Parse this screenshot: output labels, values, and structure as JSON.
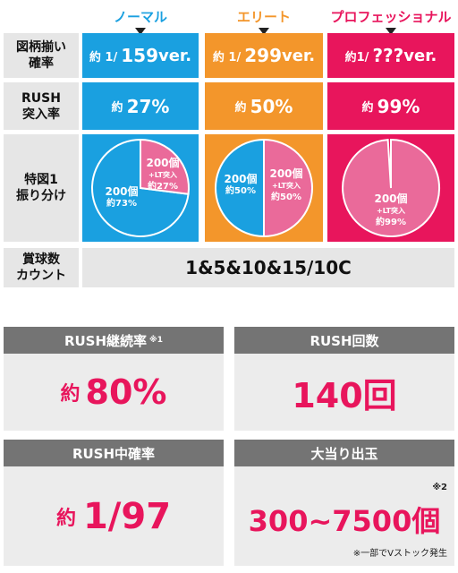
{
  "modes": {
    "normal": "ノーマル",
    "elite": "エリート",
    "professional": "プロフェッショナル"
  },
  "colors": {
    "blue": "#1aa0e0",
    "orange": "#f3962b",
    "magenta": "#e8155c",
    "pink": "#ea6a9a",
    "label_bg": "#e6e6e6",
    "box_head": "#747474",
    "box_body": "#ececec"
  },
  "rows": {
    "probability": {
      "label": "図柄揃い\n確率",
      "normal_prefix": "約 1/",
      "normal_value": "159",
      "normal_suffix": "ver.",
      "elite_prefix": "約 1/",
      "elite_value": "299",
      "elite_suffix": "ver.",
      "pro_prefix": "約1/",
      "pro_value": "???",
      "pro_suffix": "ver."
    },
    "rush_entry": {
      "label": "RUSH\n突入率",
      "normal_prefix": "約",
      "normal_value": "27%",
      "elite_prefix": "約",
      "elite_value": "50%",
      "pro_prefix": "約",
      "pro_value": "99%"
    },
    "distribution": {
      "label": "特図1\n振り分け",
      "normal": {
        "slice_a": {
          "line1": "200個",
          "line2": "+LT突入",
          "line3": "約27%",
          "share": 27
        },
        "slice_b": {
          "line1": "200個",
          "line2": "約73%",
          "share": 73
        }
      },
      "elite": {
        "slice_a": {
          "line1": "200個",
          "line2": "約50%",
          "share": 50
        },
        "slice_b": {
          "line1": "200個",
          "line2": "+LT突入",
          "line3": "約50%",
          "share": 50
        }
      },
      "pro": {
        "slice_a": {
          "line1": "200個",
          "line2": "+LT突入",
          "line3": "約99%",
          "share": 99
        }
      }
    },
    "count": {
      "label": "賞球数\nカウント",
      "value": "1&5&10&15/10C"
    }
  },
  "boxes": {
    "continuation": {
      "title": "RUSH継続率",
      "note": "※1",
      "value_prefix": "約",
      "value": "80%"
    },
    "rounds": {
      "title": "RUSH回数",
      "value": "140回"
    },
    "rush_prob": {
      "title": "RUSH中確率",
      "value_prefix": "約",
      "value": "1/97"
    },
    "payout": {
      "title": "大当り出玉",
      "value": "300~7500個",
      "note": "※2",
      "footnote": "※一部でVストック発生"
    }
  }
}
